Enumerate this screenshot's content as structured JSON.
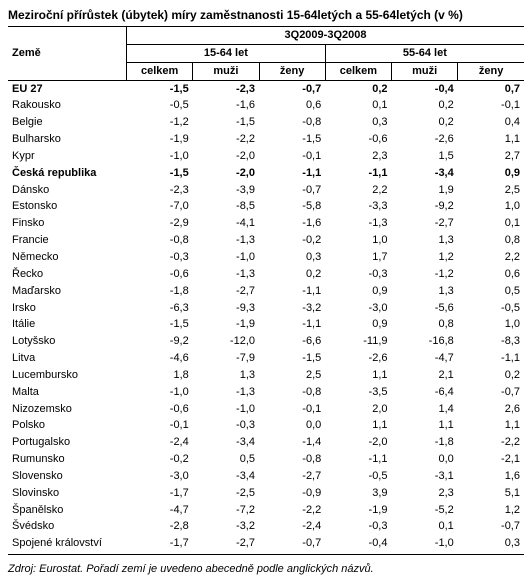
{
  "title": "Meziroční přírůstek (úbytek) míry zaměstnanosti 15-64letých a 55-64letých (v %)",
  "header": {
    "country_label": "Země",
    "period": "3Q2009-3Q2008",
    "group1": "15-64 let",
    "group2": "55-64 let",
    "sub_total": "celkem",
    "sub_men": "muži",
    "sub_women": "ženy"
  },
  "rows": [
    {
      "country": "EU 27",
      "v": [
        "-1,5",
        "-2,3",
        "-0,7",
        "0,2",
        "-0,4",
        "0,7"
      ],
      "bold": true
    },
    {
      "country": "Rakousko",
      "v": [
        "-0,5",
        "-1,6",
        "0,6",
        "0,1",
        "0,2",
        "-0,1"
      ]
    },
    {
      "country": "Belgie",
      "v": [
        "-1,2",
        "-1,5",
        "-0,8",
        "0,3",
        "0,2",
        "0,4"
      ]
    },
    {
      "country": "Bulharsko",
      "v": [
        "-1,9",
        "-2,2",
        "-1,5",
        "-0,6",
        "-2,6",
        "1,1"
      ]
    },
    {
      "country": "Kypr",
      "v": [
        "-1,0",
        "-2,0",
        "-0,1",
        "2,3",
        "1,5",
        "2,7"
      ]
    },
    {
      "country": "Česká republika",
      "v": [
        "-1,5",
        "-2,0",
        "-1,1",
        "-1,1",
        "-3,4",
        "0,9"
      ],
      "bold": true
    },
    {
      "country": "Dánsko",
      "v": [
        "-2,3",
        "-3,9",
        "-0,7",
        "2,2",
        "1,9",
        "2,5"
      ]
    },
    {
      "country": "Estonsko",
      "v": [
        "-7,0",
        "-8,5",
        "-5,8",
        "-3,3",
        "-9,2",
        "1,0"
      ]
    },
    {
      "country": "Finsko",
      "v": [
        "-2,9",
        "-4,1",
        "-1,6",
        "-1,3",
        "-2,7",
        "0,1"
      ]
    },
    {
      "country": "Francie",
      "v": [
        "-0,8",
        "-1,3",
        "-0,2",
        "1,0",
        "1,3",
        "0,8"
      ]
    },
    {
      "country": "Německo",
      "v": [
        "-0,3",
        "-1,0",
        "0,3",
        "1,7",
        "1,2",
        "2,2"
      ]
    },
    {
      "country": "Řecko",
      "v": [
        "-0,6",
        "-1,3",
        "0,2",
        "-0,3",
        "-1,2",
        "0,6"
      ]
    },
    {
      "country": "Maďarsko",
      "v": [
        "-1,8",
        "-2,7",
        "-1,1",
        "0,9",
        "1,3",
        "0,5"
      ]
    },
    {
      "country": "Irsko",
      "v": [
        "-6,3",
        "-9,3",
        "-3,2",
        "-3,0",
        "-5,6",
        "-0,5"
      ]
    },
    {
      "country": "Itálie",
      "v": [
        "-1,5",
        "-1,9",
        "-1,1",
        "0,9",
        "0,8",
        "1,0"
      ]
    },
    {
      "country": "Lotyšsko",
      "v": [
        "-9,2",
        "-12,0",
        "-6,6",
        "-11,9",
        "-16,8",
        "-8,3"
      ]
    },
    {
      "country": "Litva",
      "v": [
        "-4,6",
        "-7,9",
        "-1,5",
        "-2,6",
        "-4,7",
        "-1,1"
      ]
    },
    {
      "country": "Lucembursko",
      "v": [
        "1,8",
        "1,3",
        "2,5",
        "1,1",
        "2,1",
        "0,2"
      ]
    },
    {
      "country": "Malta",
      "v": [
        "-1,0",
        "-1,3",
        "-0,8",
        "-3,5",
        "-6,4",
        "-0,7"
      ]
    },
    {
      "country": "Nizozemsko",
      "v": [
        "-0,6",
        "-1,0",
        "-0,1",
        "2,0",
        "1,4",
        "2,6"
      ]
    },
    {
      "country": "Polsko",
      "v": [
        "-0,1",
        "-0,3",
        "0,0",
        "1,1",
        "1,1",
        "1,1"
      ]
    },
    {
      "country": "Portugalsko",
      "v": [
        "-2,4",
        "-3,4",
        "-1,4",
        "-2,0",
        "-1,8",
        "-2,2"
      ]
    },
    {
      "country": "Rumunsko",
      "v": [
        "-0,2",
        "0,5",
        "-0,8",
        "-1,1",
        "0,0",
        "-2,1"
      ]
    },
    {
      "country": "Slovensko",
      "v": [
        "-3,0",
        "-3,4",
        "-2,7",
        "-0,5",
        "-3,1",
        "1,6"
      ]
    },
    {
      "country": "Slovinsko",
      "v": [
        "-1,7",
        "-2,5",
        "-0,9",
        "3,9",
        "2,3",
        "5,1"
      ]
    },
    {
      "country": "Španělsko",
      "v": [
        "-4,7",
        "-7,2",
        "-2,2",
        "-1,9",
        "-5,2",
        "1,2"
      ]
    },
    {
      "country": "Švédsko",
      "v": [
        "-2,8",
        "-3,2",
        "-2,4",
        "-0,3",
        "0,1",
        "-0,7"
      ]
    },
    {
      "country": "Spojené království",
      "v": [
        "-1,7",
        "-2,7",
        "-0,7",
        "-0,4",
        "-1,0",
        "0,3"
      ]
    }
  ],
  "source": "Zdroj: Eurostat. Pořadí zemí je uvedeno abecedně podle anglických názvů."
}
